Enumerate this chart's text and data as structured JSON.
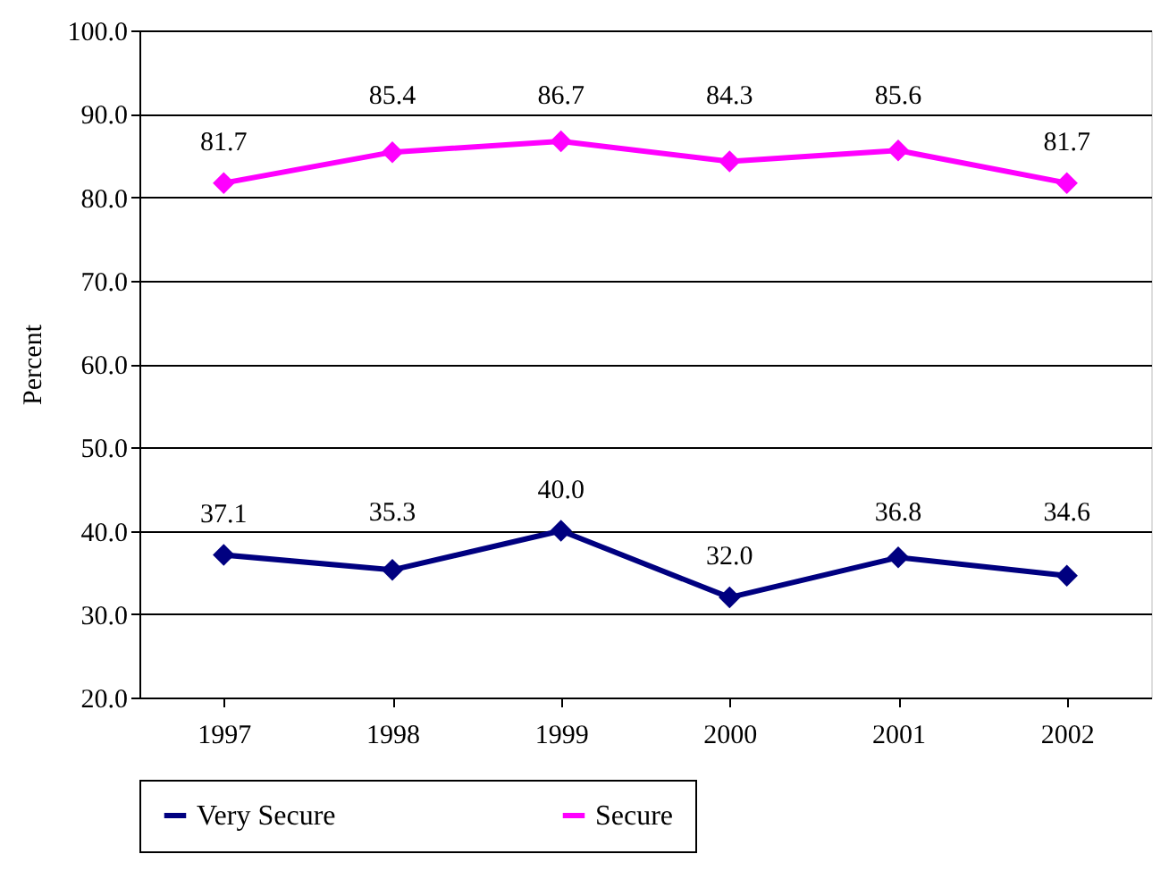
{
  "chart_data": {
    "type": "line",
    "categories": [
      "1997",
      "1998",
      "1999",
      "2000",
      "2001",
      "2002"
    ],
    "ylabel": "Percent",
    "ylim": [
      20,
      100
    ],
    "yticks": [
      {
        "value": 20,
        "label": "20.0"
      },
      {
        "value": 30,
        "label": "30.0"
      },
      {
        "value": 40,
        "label": "40.0"
      },
      {
        "value": 50,
        "label": "50.0"
      },
      {
        "value": 60,
        "label": "60.0"
      },
      {
        "value": 70,
        "label": "70.0"
      },
      {
        "value": 80,
        "label": "80.0"
      },
      {
        "value": 90,
        "label": "90.0"
      },
      {
        "value": 100,
        "label": "100.0"
      }
    ],
    "grid": "y",
    "legend": "bottom",
    "marker": "diamond",
    "line_style": "solid",
    "series": [
      {
        "name": "Very Secure",
        "color": "#000080",
        "values": [
          37.1,
          35.3,
          40.0,
          32.0,
          36.8,
          34.6
        ],
        "value_labels": [
          "37.1",
          "35.3",
          "40.0",
          "32.0",
          "36.8",
          "34.6"
        ]
      },
      {
        "name": "Secure",
        "color": "#ff00ff",
        "values": [
          81.7,
          85.4,
          86.7,
          84.3,
          85.6,
          81.7
        ],
        "value_labels": [
          "81.7",
          "85.4",
          "86.7",
          "84.3",
          "85.6",
          "81.7"
        ]
      }
    ]
  }
}
